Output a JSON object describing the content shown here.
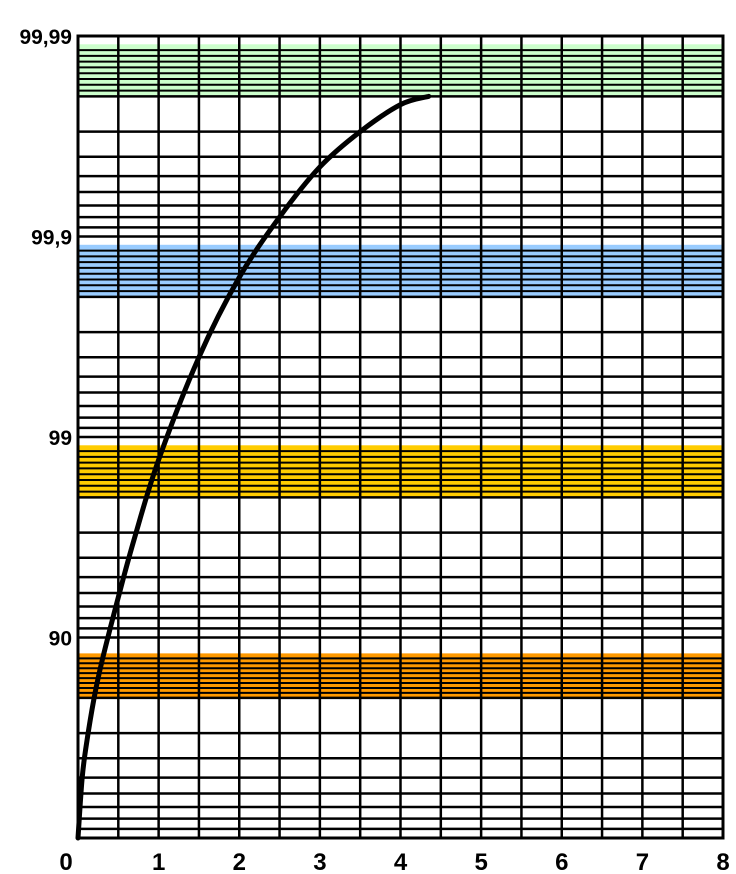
{
  "chart_data": {
    "type": "line",
    "title": "",
    "xlabel": "",
    "ylabel": "",
    "xlim": [
      0,
      8
    ],
    "ylim_nines": [
      0,
      4
    ],
    "y_scale": "log-nines (availability %)",
    "grid": true,
    "x_ticks": [
      "0",
      "1",
      "2",
      "3",
      "4",
      "5",
      "6",
      "7",
      "8"
    ],
    "y_ticks": [
      {
        "label": "90",
        "value": 90
      },
      {
        "label": "99",
        "value": 99
      },
      {
        "label": "99,9",
        "value": 99.9
      },
      {
        "label": "99,99",
        "value": 99.99
      }
    ],
    "bands": [
      {
        "color": "#ff9900",
        "y_from": 80,
        "y_to": 88
      },
      {
        "color": "#ffcc00",
        "y_from": 98,
        "y_to": 98.9
      },
      {
        "color": "#99ccff",
        "y_from": 99.8,
        "y_to": 99.89
      },
      {
        "color": "#ccffcc",
        "y_from": 99.98,
        "y_to": 99.989
      }
    ],
    "series": [
      {
        "color": "#000000",
        "x": [
          0.0,
          0.05,
          0.1,
          0.2,
          0.3,
          0.5,
          0.7,
          1.0,
          1.5,
          2.0,
          2.5,
          3.0,
          3.5,
          4.0,
          4.35
        ],
        "y": [
          0.0,
          49.0,
          65.0,
          80.0,
          87.0,
          93.7,
          96.8,
          98.7,
          99.6,
          99.84,
          99.92,
          99.955,
          99.97,
          99.978,
          99.98
        ]
      }
    ]
  }
}
